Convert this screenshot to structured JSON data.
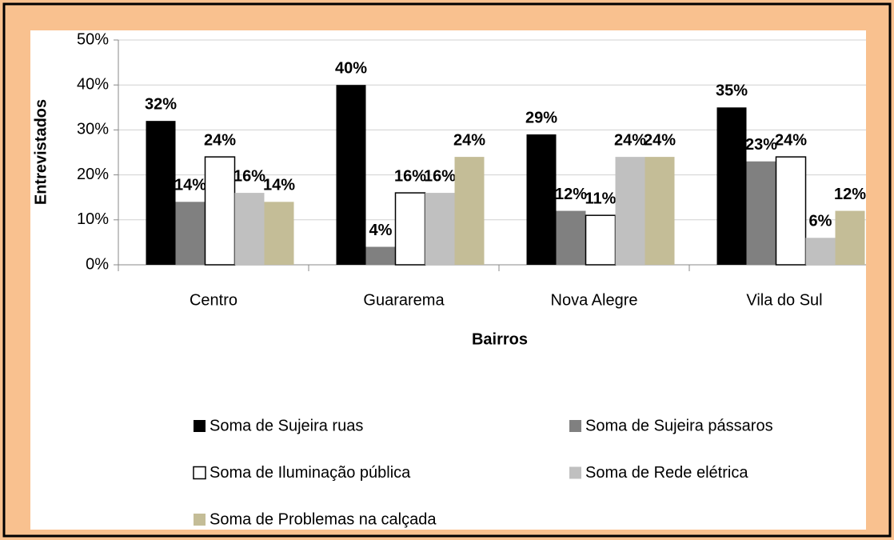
{
  "chart_data": {
    "type": "bar",
    "x_label": "Bairros",
    "y_label": "Entrevistados",
    "categories": [
      "Centro",
      "Guararema",
      "Nova Alegre",
      "Vila do Sul"
    ],
    "series": [
      {
        "name": "Soma de Sujeira ruas",
        "color": "#000000",
        "values": [
          32,
          40,
          29,
          35
        ],
        "value_labels": [
          "32%",
          "40%",
          "29%",
          "35%"
        ]
      },
      {
        "name": "Soma de Sujeira pássaros",
        "color": "#808080",
        "values": [
          14,
          4,
          12,
          23
        ],
        "value_labels": [
          "14%",
          "4%",
          "12%",
          "23%"
        ]
      },
      {
        "name": "Soma de Iluminação pública",
        "color": "#ffffff",
        "values": [
          24,
          16,
          11,
          24
        ],
        "value_labels": [
          "24%",
          "16%",
          "11%",
          "24%"
        ]
      },
      {
        "name": "Soma de Rede elétrica",
        "color": "#c0c0c0",
        "values": [
          16,
          16,
          24,
          6
        ],
        "value_labels": [
          "16%",
          "16%",
          "24%",
          "6%"
        ]
      },
      {
        "name": "Soma de Problemas na calçada",
        "color": "#c4bd97",
        "values": [
          14,
          24,
          24,
          12
        ],
        "value_labels": [
          "14%",
          "24%",
          "24%",
          "12%"
        ]
      }
    ],
    "ylim": [
      0,
      50
    ],
    "yticks": [
      {
        "value": 0,
        "label": "0%"
      },
      {
        "value": 10,
        "label": "10%"
      },
      {
        "value": 20,
        "label": "20%"
      },
      {
        "value": 30,
        "label": "30%"
      },
      {
        "value": 40,
        "label": "40%"
      },
      {
        "value": 50,
        "label": "50%"
      }
    ],
    "grid": true,
    "legend": "bottom"
  }
}
